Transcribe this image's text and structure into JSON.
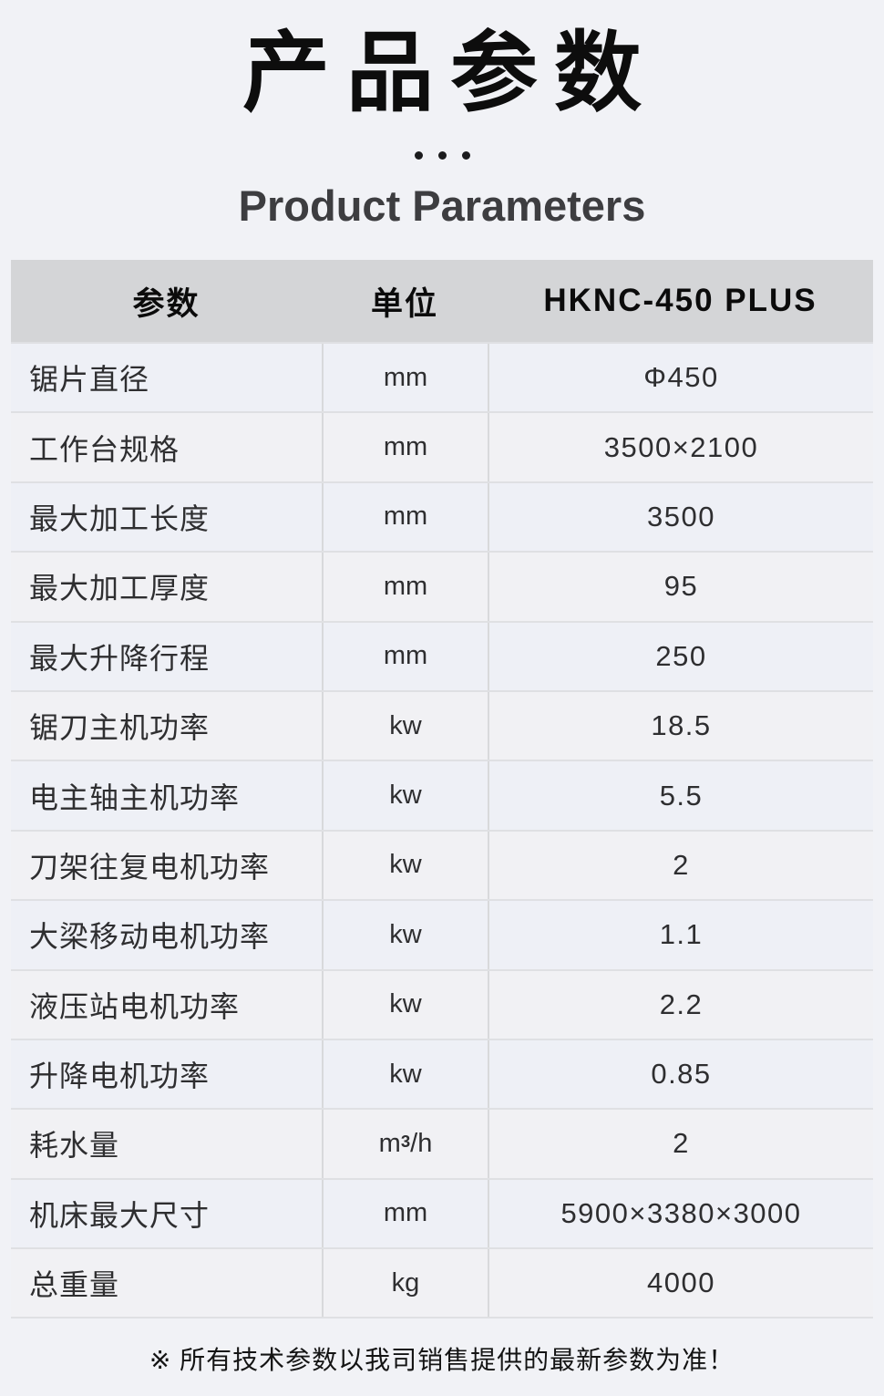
{
  "page": {
    "title_cn": "产品参数",
    "title_en": "Product Parameters",
    "divider_icon": "three-dots"
  },
  "colors": {
    "page_bg": "#f1f2f6",
    "header_bg": "#d4d5d7",
    "row_odd": "#eef0f6",
    "row_even": "#f1f1f4"
  },
  "table": {
    "headers": [
      "参数",
      "单位",
      "HKNC-450 PLUS"
    ],
    "rows": [
      {
        "param": "锯片直径",
        "unit": "mm",
        "value": "Φ450"
      },
      {
        "param": "工作台规格",
        "unit": "mm",
        "value": "3500×2100"
      },
      {
        "param": "最大加工长度",
        "unit": "mm",
        "value": "3500"
      },
      {
        "param": "最大加工厚度",
        "unit": "mm",
        "value": "95"
      },
      {
        "param": "最大升降行程",
        "unit": "mm",
        "value": "250"
      },
      {
        "param": "锯刀主机功率",
        "unit": "kw",
        "value": "18.5"
      },
      {
        "param": "电主轴主机功率",
        "unit": "kw",
        "value": "5.5"
      },
      {
        "param": "刀架往复电机功率",
        "unit": "kw",
        "value": "2"
      },
      {
        "param": "大梁移动电机功率",
        "unit": "kw",
        "value": "1.1"
      },
      {
        "param": "液压站电机功率",
        "unit": "kw",
        "value": "2.2"
      },
      {
        "param": "升降电机功率",
        "unit": "kw",
        "value": "0.85"
      },
      {
        "param": "耗水量",
        "unit": "m³/h",
        "value": "2"
      },
      {
        "param": "机床最大尺寸",
        "unit": "mm",
        "value": "5900×3380×3000"
      },
      {
        "param": "总重量",
        "unit": "kg",
        "value": "4000"
      }
    ]
  },
  "footer": {
    "note": "※ 所有技术参数以我司销售提供的最新参数为准！"
  }
}
